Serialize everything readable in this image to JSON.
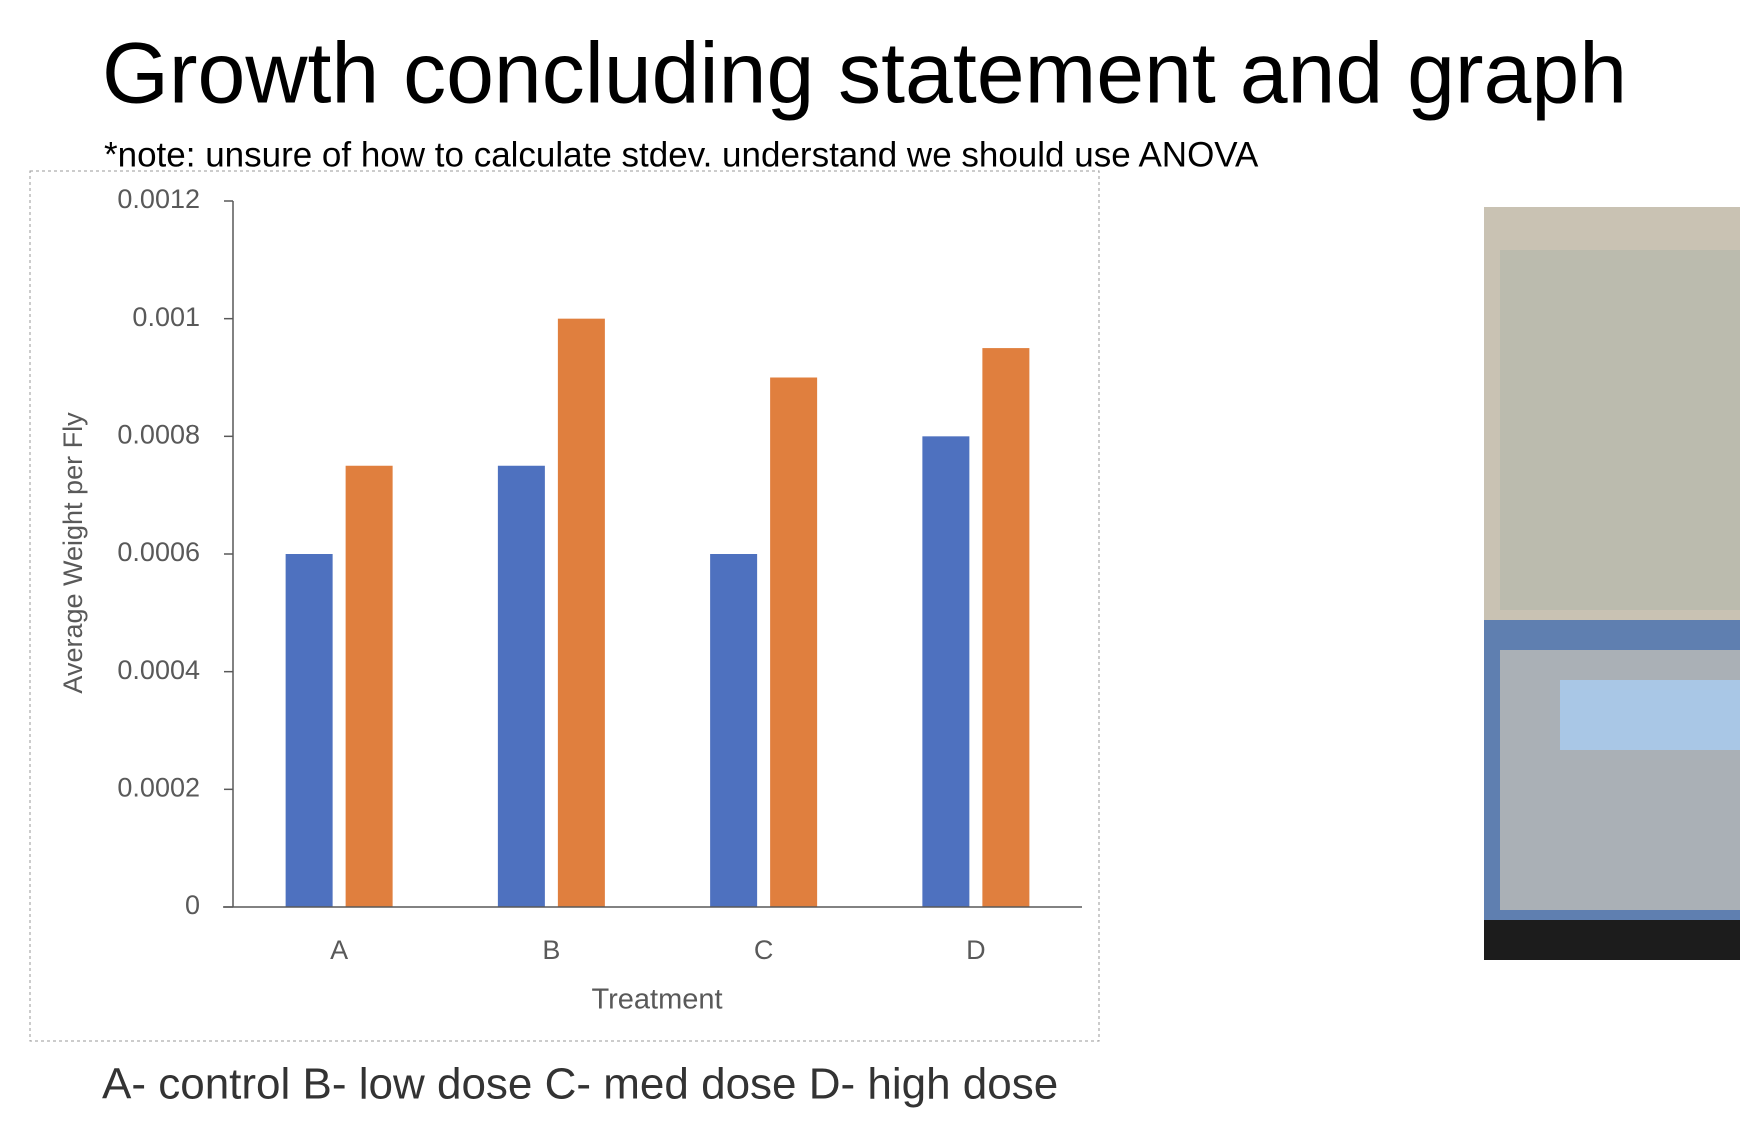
{
  "slide": {
    "title": "Growth concluding statement and graph",
    "note": "*note: unsure of how to calculate stdev. understand we should use ANOVA",
    "caption": "A- control  B- low dose  C- med dose D- high dose"
  },
  "chart_data": {
    "type": "bar",
    "xlabel": "Treatment",
    "ylabel": "Average Weight per Fly",
    "categories": [
      "A",
      "B",
      "C",
      "D"
    ],
    "series": [
      {
        "color": "#4e71bf",
        "values": [
          0.0006,
          0.00075,
          0.0006,
          0.0008
        ]
      },
      {
        "color": "#e07f3e",
        "values": [
          0.00075,
          0.001,
          0.0009,
          0.00095
        ]
      }
    ],
    "ylim": [
      0,
      0.0012
    ],
    "yticks": [
      0,
      0.0002,
      0.0004,
      0.0006,
      0.0008,
      0.001,
      0.0012
    ],
    "grid": false
  }
}
